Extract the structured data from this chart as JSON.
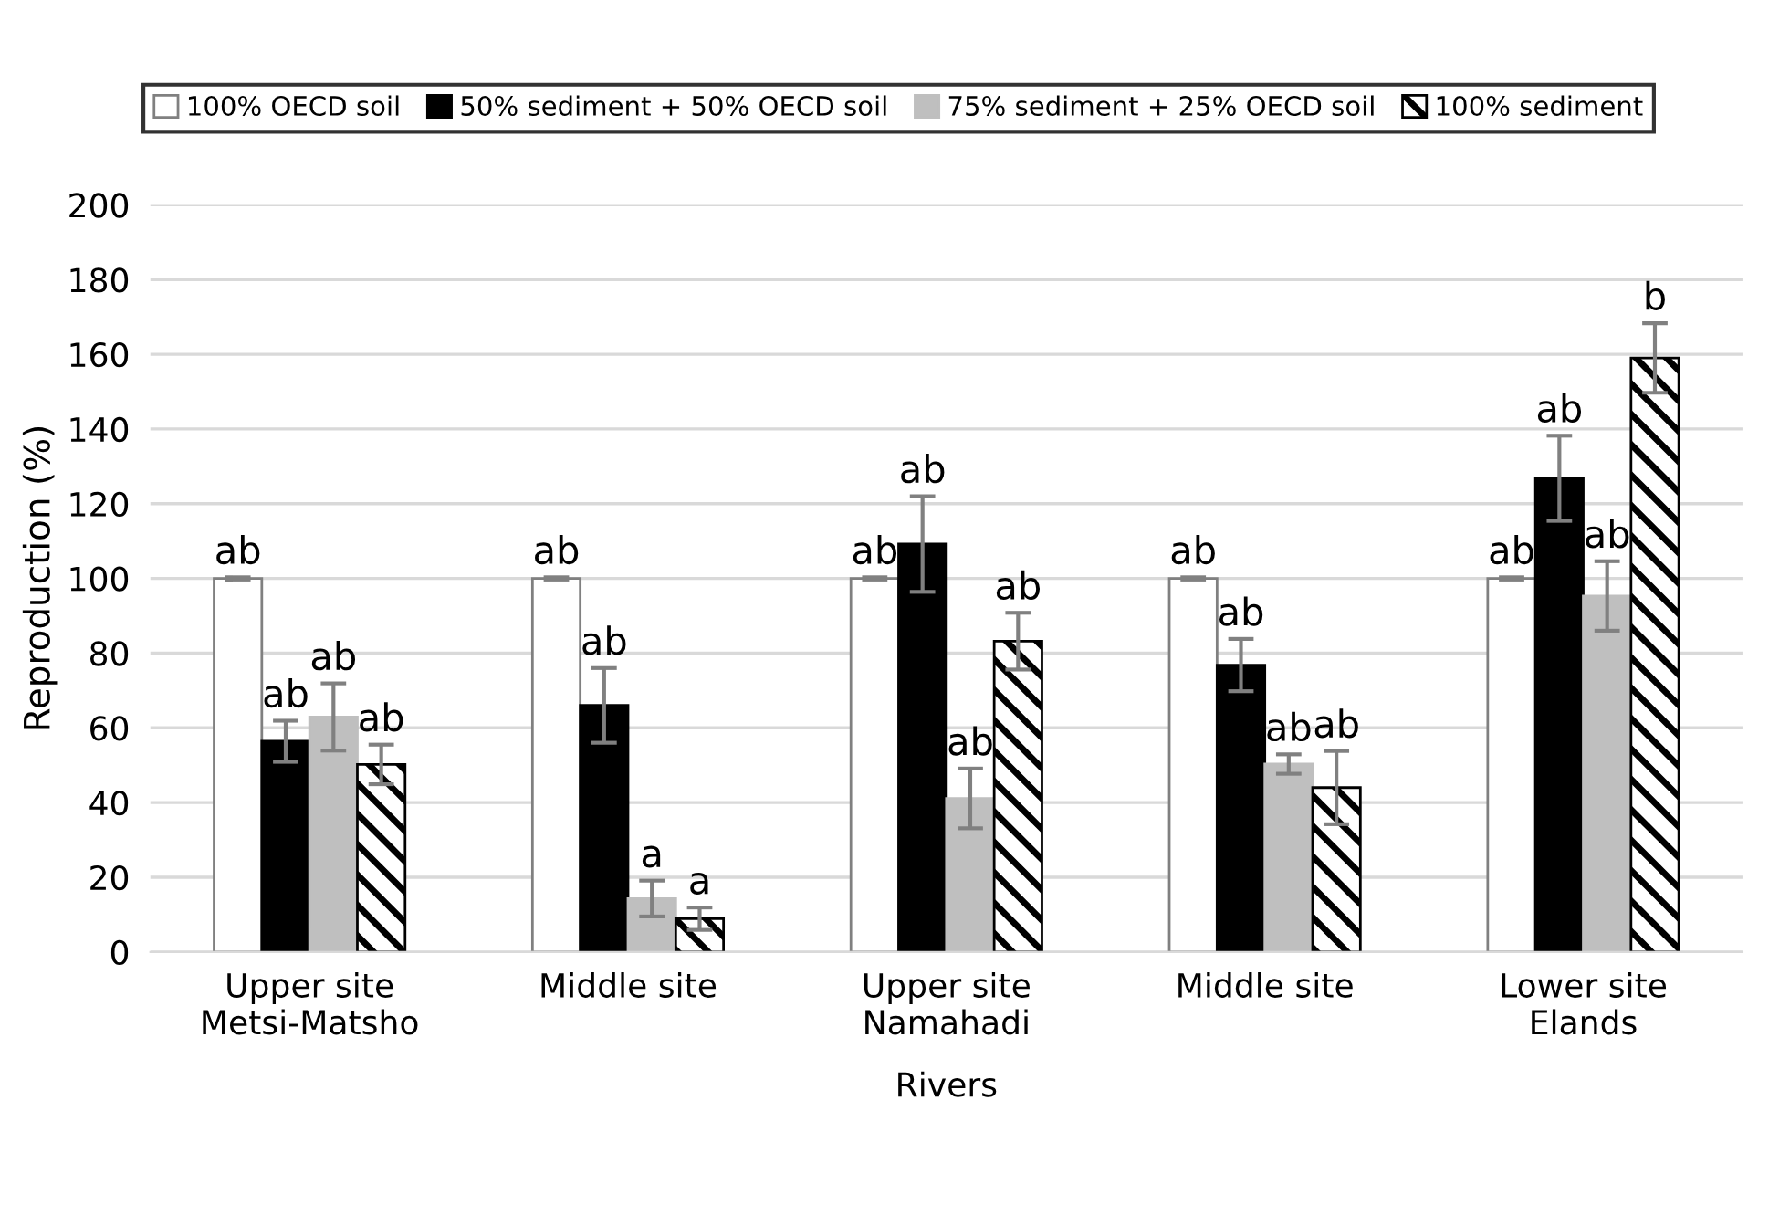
{
  "chart_data": {
    "type": "bar",
    "xlabel": "Rivers",
    "ylabel": "Reproduction (%)",
    "categories": [
      "Upper site\nMetsi-Matsho",
      "Middle site",
      "Upper site\nNamahadi",
      "Middle site",
      "Lower site\nElands"
    ],
    "series": [
      {
        "name": "100% OECD soil",
        "color": "#ffffff",
        "values": [
          100,
          100,
          100,
          100,
          100
        ],
        "errors": [
          0.3,
          0.3,
          0.3,
          0.3,
          0.3
        ],
        "value_labels": [
          "ab",
          "ab",
          "ab",
          "ab",
          "ab"
        ]
      },
      {
        "name": "50% sediment + 50% OECD soil",
        "color": "#000000",
        "values": [
          56.4,
          66,
          109.2,
          76.8,
          126.8
        ],
        "errors": [
          5.5,
          10,
          12.8,
          7,
          11.4
        ],
        "value_labels": [
          "ab",
          "ab",
          "ab",
          "ab",
          "ab"
        ]
      },
      {
        "name": "75% sediment + 25% OECD soil",
        "color": "#bfbfbf",
        "values": [
          62.9,
          14.3,
          41.1,
          50.3,
          95.3
        ],
        "errors": [
          9,
          4.8,
          8,
          2.6,
          9.3
        ],
        "value_labels": [
          "ab",
          "a",
          "ab",
          "ab",
          "ab"
        ]
      },
      {
        "name": "100% sediment",
        "color": "#000000",
        "values": [
          50.2,
          8.9,
          83.2,
          44,
          159
        ],
        "errors": [
          5.3,
          3,
          7.6,
          9.8,
          9.3
        ],
        "value_labels": [
          "ab",
          "a",
          "ab",
          "ab",
          "b"
        ]
      }
    ],
    "ylim": [
      0,
      200
    ],
    "yticks": [
      0,
      20,
      40,
      60,
      80,
      100,
      120,
      140,
      160,
      180,
      200
    ],
    "grid": "y",
    "legend": "top"
  }
}
